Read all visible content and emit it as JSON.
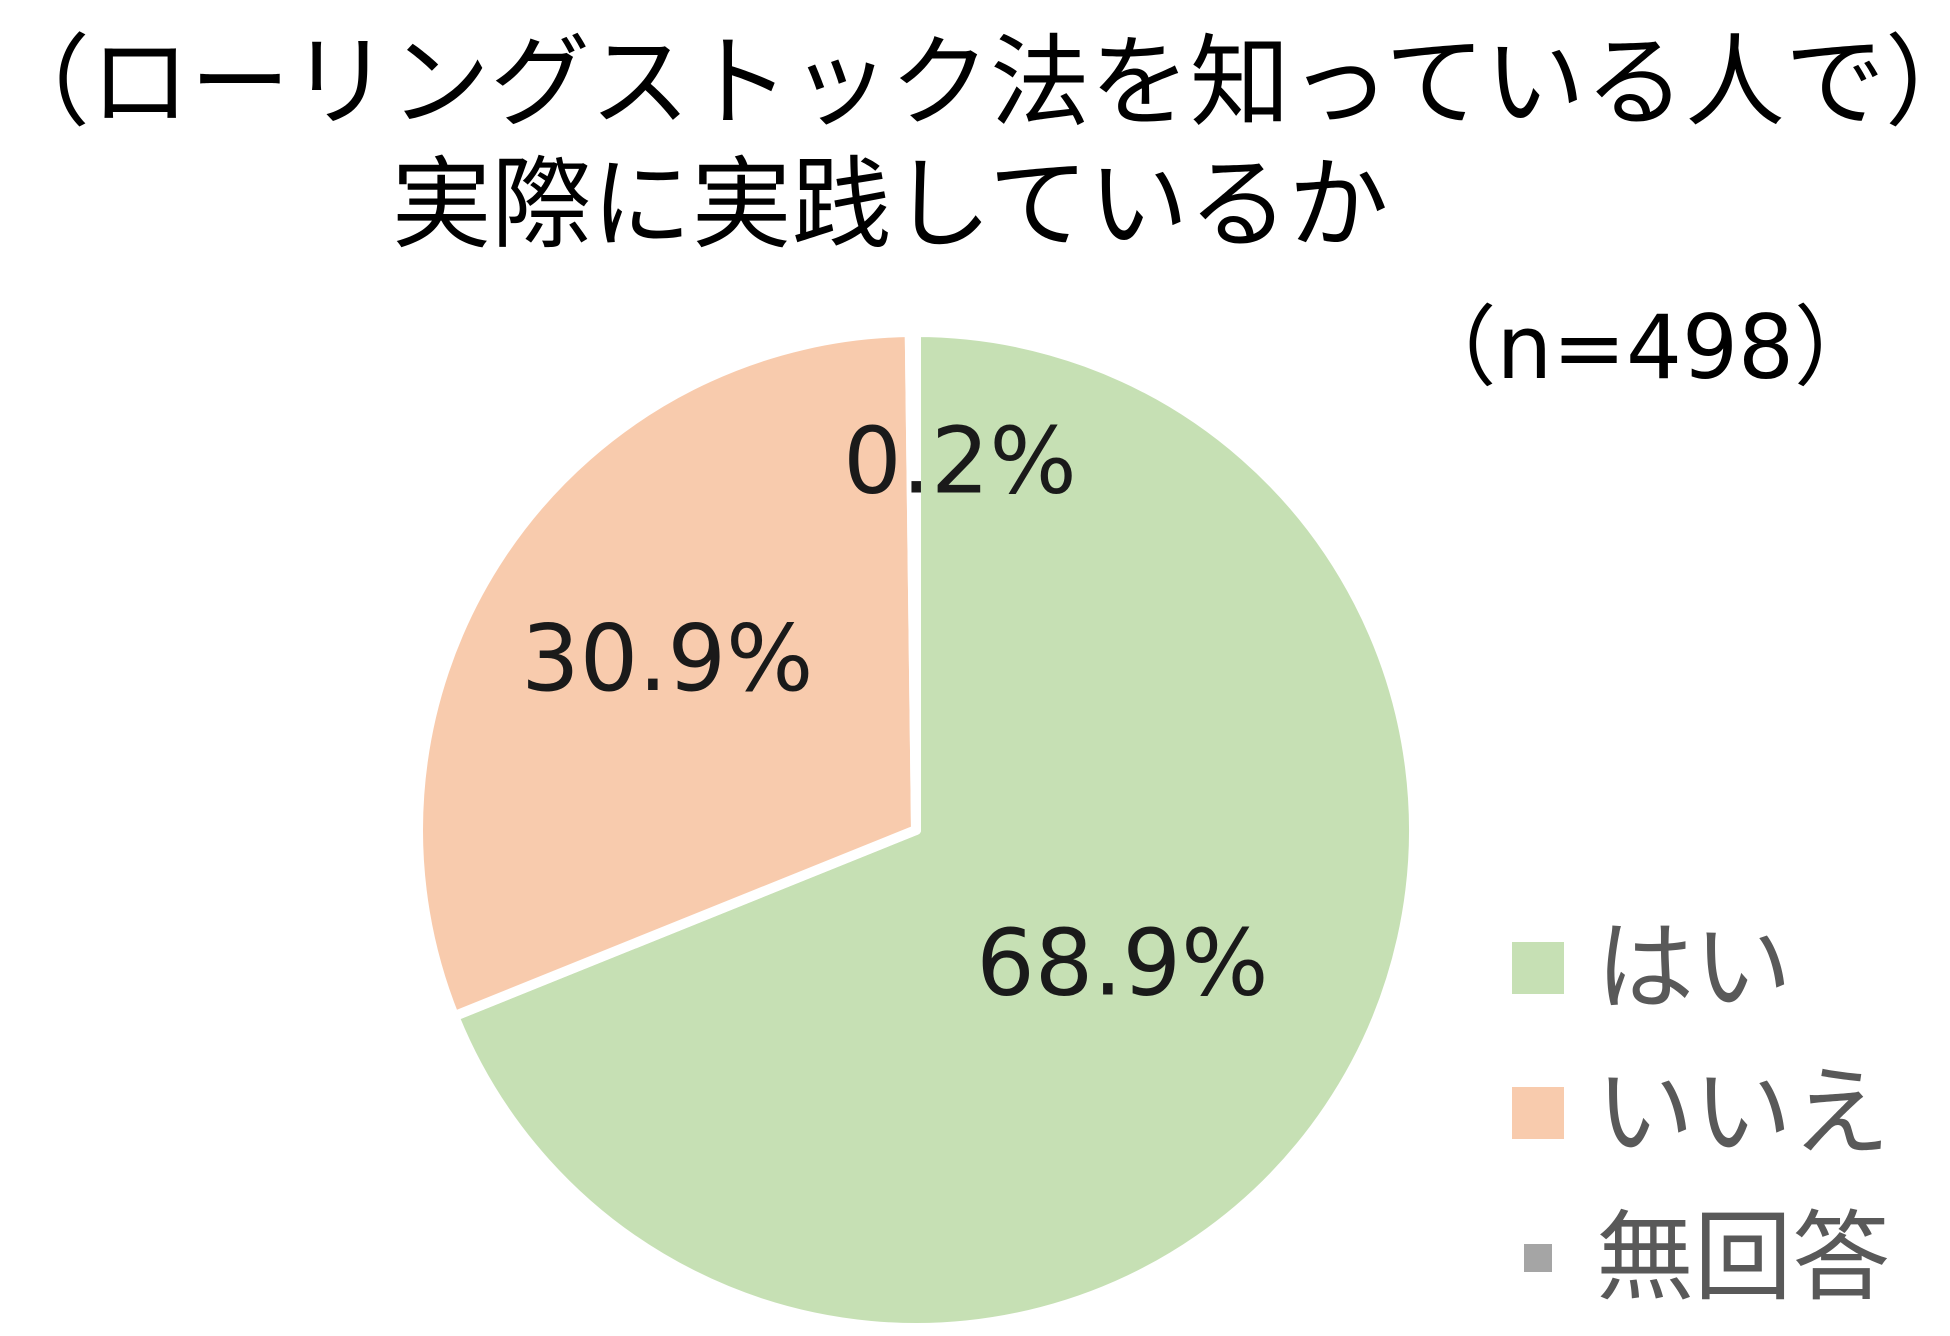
{
  "chart_data": {
    "type": "pie",
    "title_lines": [
      "（ローリングストック法を知っている人で）",
      "実際に実践しているか"
    ],
    "sample_size": "（n=498）",
    "slices": [
      {
        "name": "はい",
        "value": 68.9,
        "label": "68.9%",
        "color": "#c6e0b4"
      },
      {
        "name": "いいえ",
        "value": 30.9,
        "label": "30.9%",
        "color": "#f8cbad"
      },
      {
        "name": "無回答",
        "value": 0.2,
        "label": "0.2%",
        "color": "#a5a5a5"
      }
    ],
    "start_angle_deg": 0,
    "direction": "clockwise",
    "legend_position": "right-bottom"
  }
}
